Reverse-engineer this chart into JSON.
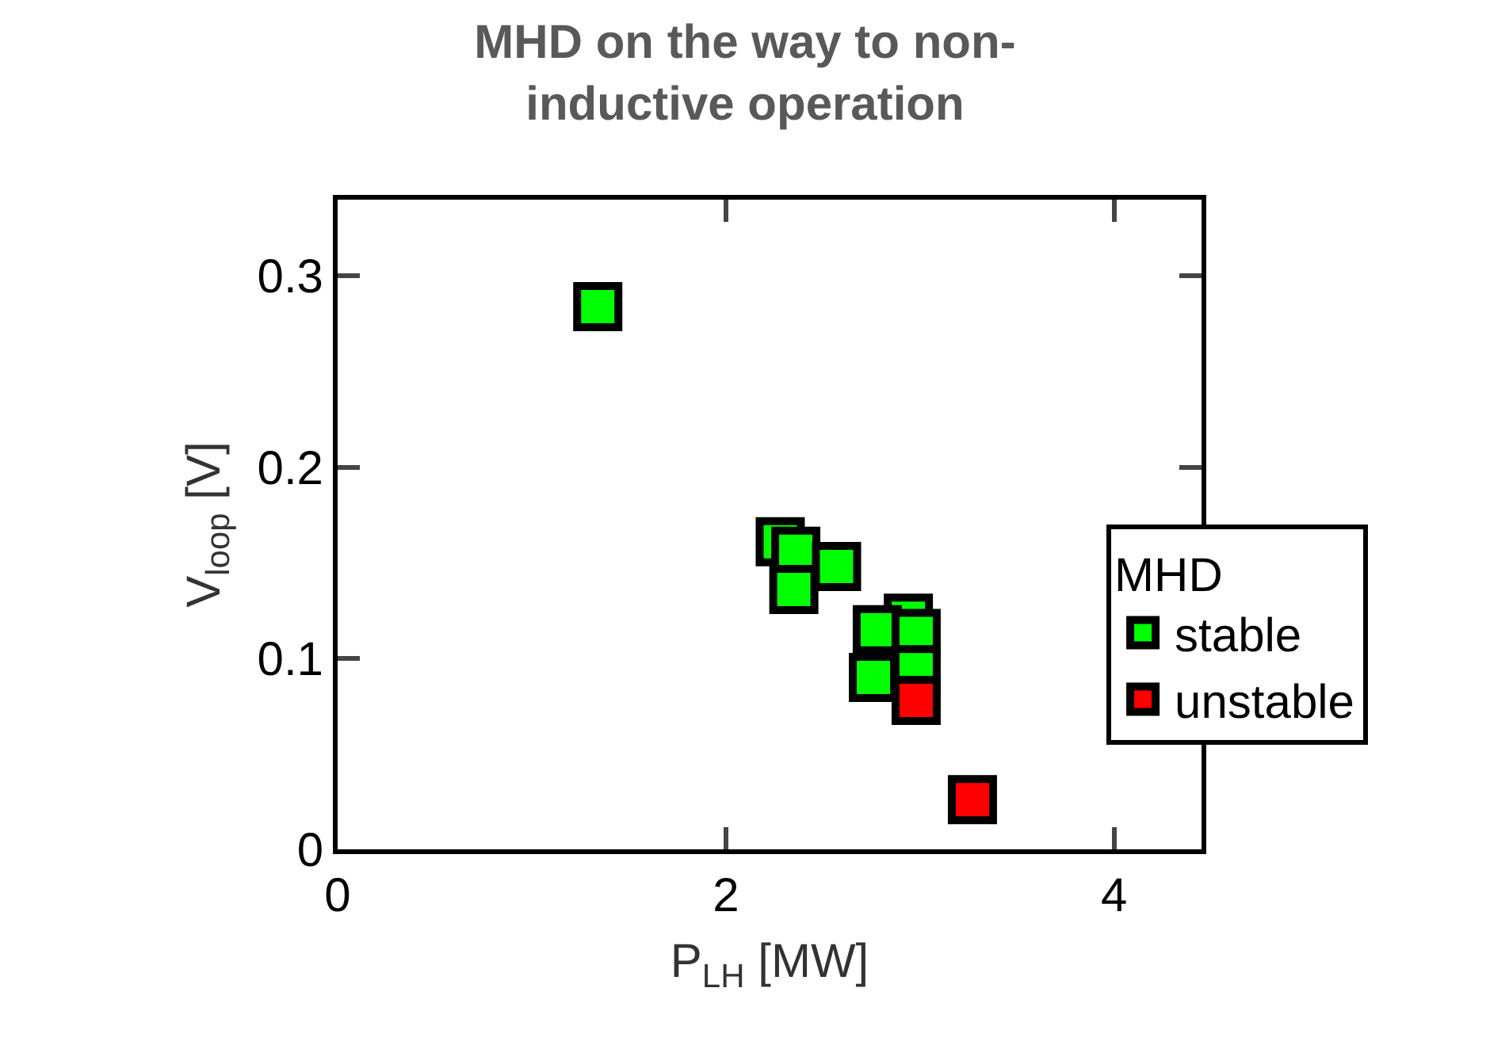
{
  "chart_data": {
    "type": "scatter",
    "title": "MHD on the way to non-\ninductive operation",
    "xlabel": "P$_{LH}$ [MW]",
    "ylabel": "V$_{loop}$ [V]",
    "legend_title": "MHD",
    "xlim": [
      0,
      4.45
    ],
    "xticks": [
      0,
      2,
      4
    ],
    "ylim": [
      0,
      0.34
    ],
    "yticks": [
      0,
      0.1,
      0.2,
      0.3
    ],
    "legend": "right",
    "marker": "square",
    "series": [
      {
        "name": "stable",
        "color": "#00ff00",
        "x": [
          1.34,
          2.28,
          2.36,
          2.57,
          2.35,
          2.94,
          2.78,
          2.98,
          2.76,
          2.98
        ],
        "values": [
          0.284,
          0.161,
          0.156,
          0.148,
          0.136,
          0.121,
          0.115,
          0.113,
          0.09,
          0.094
        ]
      },
      {
        "name": "unstable",
        "color": "#ff0000",
        "x": [
          2.98,
          3.27
        ],
        "values": [
          0.078,
          0.026
        ]
      }
    ]
  }
}
